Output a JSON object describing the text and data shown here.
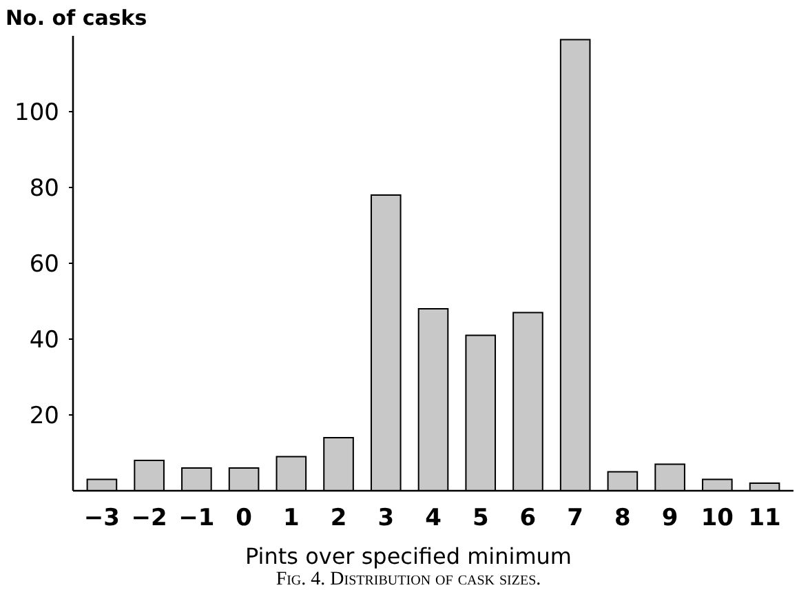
{
  "chart_data": {
    "type": "bar",
    "ylabel": "No. of casks",
    "xlabel": "Pints over specified minimum",
    "categories": [
      "−3",
      "−2",
      "−1",
      "0",
      "1",
      "2",
      "3",
      "4",
      "5",
      "6",
      "7",
      "8",
      "9",
      "10",
      "11"
    ],
    "values": [
      3,
      8,
      6,
      6,
      9,
      14,
      78,
      48,
      41,
      47,
      119,
      5,
      7,
      3,
      2
    ],
    "color": "#c8c8c8",
    "ylim": [
      0,
      120
    ],
    "yticks": [
      20,
      40,
      60,
      80,
      100
    ],
    "grid": false,
    "annotations": [
      "Fig. 4.  Distribution of cask sizes."
    ]
  }
}
